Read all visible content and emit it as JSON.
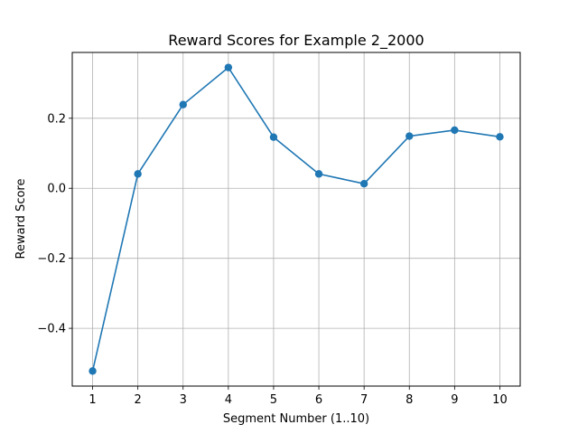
{
  "chart_data": {
    "type": "line",
    "title": "Reward Scores for Example 2_2000",
    "xlabel": "Segment Number (1..10)",
    "ylabel": "Reward Score",
    "x": [
      1,
      2,
      3,
      4,
      5,
      6,
      7,
      8,
      9,
      10
    ],
    "xticks": [
      "1",
      "2",
      "3",
      "4",
      "5",
      "6",
      "7",
      "8",
      "9",
      "10"
    ],
    "yticks": [
      -0.4,
      -0.2,
      0.0,
      0.2
    ],
    "ytick_labels": [
      "−0.4",
      "−0.2",
      "0.0",
      "0.2"
    ],
    "xlim": [
      0.55,
      10.45
    ],
    "ylim": [
      -0.565,
      0.388
    ],
    "grid": true,
    "series": [
      {
        "color": "#1f77b4",
        "marker": "circle",
        "values": [
          -0.522,
          0.041,
          0.239,
          0.345,
          0.146,
          0.041,
          0.013,
          0.149,
          0.166,
          0.147
        ]
      }
    ]
  }
}
